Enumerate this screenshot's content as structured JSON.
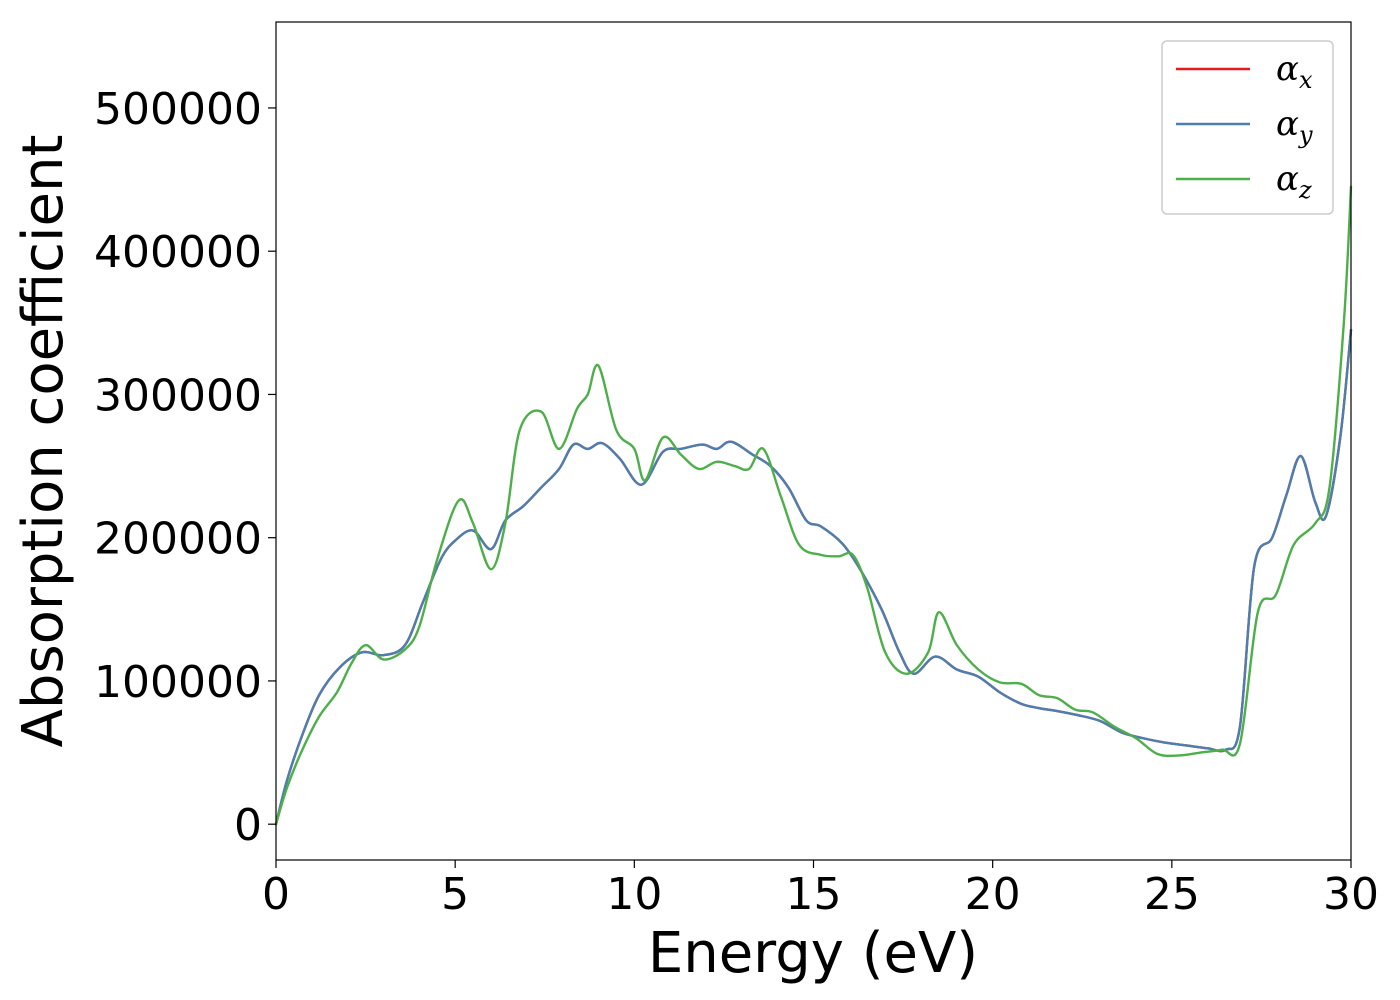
{
  "chart_data": {
    "type": "line",
    "title": "",
    "xlabel": "Energy (eV)",
    "ylabel": "Absorption coefficient",
    "xlim": [
      0,
      30
    ],
    "ylim": [
      -25000,
      560000
    ],
    "xticks": [
      0,
      5,
      10,
      15,
      20,
      25,
      30
    ],
    "yticks": [
      0,
      100000,
      200000,
      300000,
      400000,
      500000
    ],
    "grid": false,
    "legend_position": "top-right",
    "series": [
      {
        "name": "α",
        "subscript": "x",
        "color": "#e41a1c",
        "x": [
          0,
          0.3,
          0.7,
          1.2,
          1.8,
          2.4,
          3.0,
          3.6,
          4.1,
          4.6,
          5.0,
          5.5,
          6.0,
          6.4,
          6.9,
          7.4,
          7.9,
          8.3,
          8.7,
          9.1,
          9.6,
          10.2,
          10.8,
          11.3,
          11.9,
          12.3,
          12.7,
          13.3,
          13.8,
          14.3,
          14.8,
          15.2,
          15.8,
          16.3,
          16.9,
          17.4,
          17.8,
          18.4,
          19.0,
          19.6,
          20.2,
          20.8,
          21.3,
          21.8,
          22.4,
          23.0,
          23.6,
          24.2,
          24.8,
          25.4,
          26.0,
          26.5,
          26.9,
          27.3,
          27.8,
          28.2,
          28.6,
          29.0,
          29.3,
          29.7,
          30.0
        ],
        "y": [
          0,
          30000,
          60000,
          90000,
          110000,
          120000,
          118000,
          125000,
          155000,
          185000,
          198000,
          205000,
          192000,
          212000,
          222000,
          235000,
          248000,
          265000,
          262000,
          266000,
          255000,
          237000,
          260000,
          262000,
          265000,
          262000,
          267000,
          258000,
          250000,
          235000,
          212000,
          208000,
          196000,
          178000,
          150000,
          120000,
          105000,
          117000,
          108000,
          103000,
          92000,
          84000,
          81000,
          79000,
          76000,
          72000,
          64000,
          60000,
          57000,
          55000,
          53000,
          52000,
          68000,
          180000,
          200000,
          230000,
          257000,
          225000,
          215000,
          270000,
          345000
        ]
      },
      {
        "name": "α",
        "subscript": "y",
        "color": "#4a7fb0",
        "x": [
          0,
          0.3,
          0.7,
          1.2,
          1.8,
          2.4,
          3.0,
          3.6,
          4.1,
          4.6,
          5.0,
          5.5,
          6.0,
          6.4,
          6.9,
          7.4,
          7.9,
          8.3,
          8.7,
          9.1,
          9.6,
          10.2,
          10.8,
          11.3,
          11.9,
          12.3,
          12.7,
          13.3,
          13.8,
          14.3,
          14.8,
          15.2,
          15.8,
          16.3,
          16.9,
          17.4,
          17.8,
          18.4,
          19.0,
          19.6,
          20.2,
          20.8,
          21.3,
          21.8,
          22.4,
          23.0,
          23.6,
          24.2,
          24.8,
          25.4,
          26.0,
          26.5,
          26.9,
          27.3,
          27.8,
          28.2,
          28.6,
          29.0,
          29.3,
          29.7,
          30.0
        ],
        "y": [
          0,
          30000,
          60000,
          90000,
          110000,
          120000,
          118000,
          125000,
          155000,
          185000,
          198000,
          205000,
          192000,
          212000,
          222000,
          235000,
          248000,
          265000,
          262000,
          266000,
          255000,
          237000,
          260000,
          262000,
          265000,
          262000,
          267000,
          258000,
          250000,
          235000,
          212000,
          208000,
          196000,
          178000,
          150000,
          120000,
          105000,
          117000,
          108000,
          103000,
          92000,
          84000,
          81000,
          79000,
          76000,
          72000,
          64000,
          60000,
          57000,
          55000,
          53000,
          52000,
          68000,
          180000,
          200000,
          230000,
          257000,
          225000,
          215000,
          270000,
          345000
        ]
      },
      {
        "name": "α",
        "subscript": "z",
        "color": "#4daf4a",
        "x": [
          0,
          0.3,
          0.7,
          1.2,
          1.7,
          2.1,
          2.5,
          3.0,
          3.6,
          4.0,
          4.5,
          5.1,
          5.5,
          6.0,
          6.4,
          6.8,
          7.4,
          7.9,
          8.4,
          8.7,
          9.0,
          9.5,
          10.0,
          10.3,
          10.8,
          11.3,
          11.8,
          12.3,
          12.8,
          13.2,
          13.6,
          14.1,
          14.6,
          15.2,
          15.7,
          16.1,
          16.5,
          17.0,
          17.6,
          18.2,
          18.5,
          19.0,
          19.6,
          20.2,
          20.8,
          21.3,
          21.8,
          22.3,
          22.8,
          23.4,
          24.0,
          24.6,
          25.2,
          25.8,
          26.4,
          26.9,
          27.4,
          27.9,
          28.4,
          29.0,
          29.4,
          29.8,
          30.0
        ],
        "y": [
          0,
          25000,
          50000,
          75000,
          92000,
          112000,
          125000,
          115000,
          122000,
          138000,
          185000,
          226000,
          210000,
          178000,
          210000,
          275000,
          288000,
          262000,
          290000,
          300000,
          320000,
          275000,
          262000,
          240000,
          270000,
          258000,
          248000,
          253000,
          250000,
          248000,
          262000,
          228000,
          195000,
          188000,
          187000,
          188000,
          165000,
          120000,
          105000,
          120000,
          148000,
          125000,
          108000,
          99000,
          98000,
          90000,
          88000,
          80000,
          78000,
          68000,
          60000,
          49000,
          48000,
          50000,
          52000,
          56000,
          148000,
          160000,
          195000,
          210000,
          235000,
          350000,
          445000
        ]
      }
    ]
  }
}
